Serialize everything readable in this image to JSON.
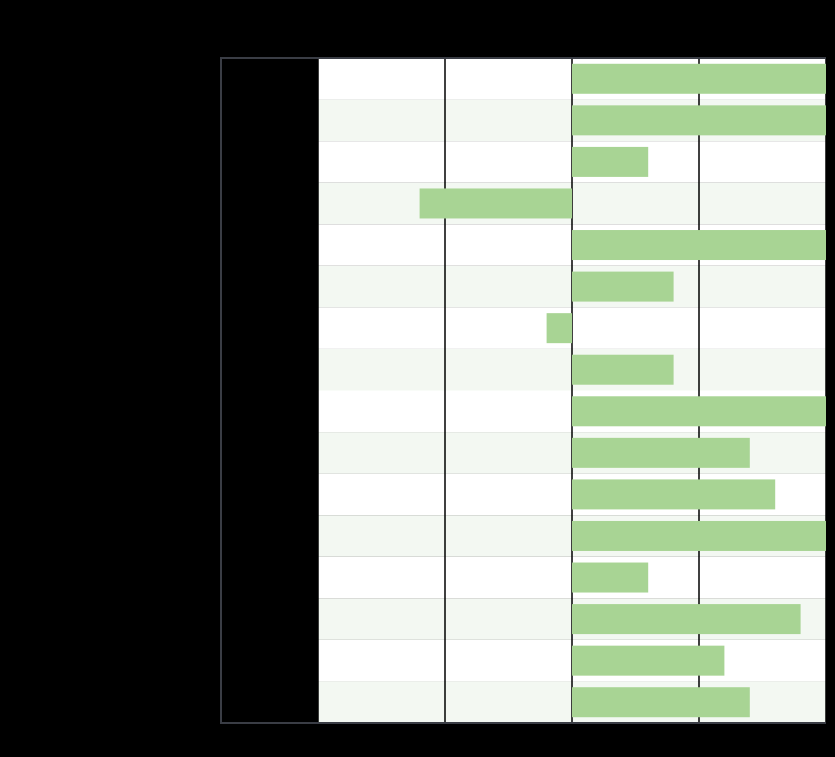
{
  "chart_data": {
    "type": "barh",
    "categories": [
      null,
      null,
      null,
      null,
      null,
      null,
      null,
      null,
      null,
      null,
      null,
      null,
      null,
      null,
      null,
      null
    ],
    "values": [
      2.0,
      2.0,
      0.6,
      -1.2,
      2.0,
      0.8,
      -0.2,
      0.8,
      2.0,
      1.4,
      1.6,
      2.0,
      0.6,
      1.8,
      1.2,
      1.4
    ],
    "color": "#a8d494",
    "xlim": [
      -2,
      2
    ],
    "xticks": [
      -2,
      -1,
      0,
      1,
      2
    ],
    "grid": true
  }
}
